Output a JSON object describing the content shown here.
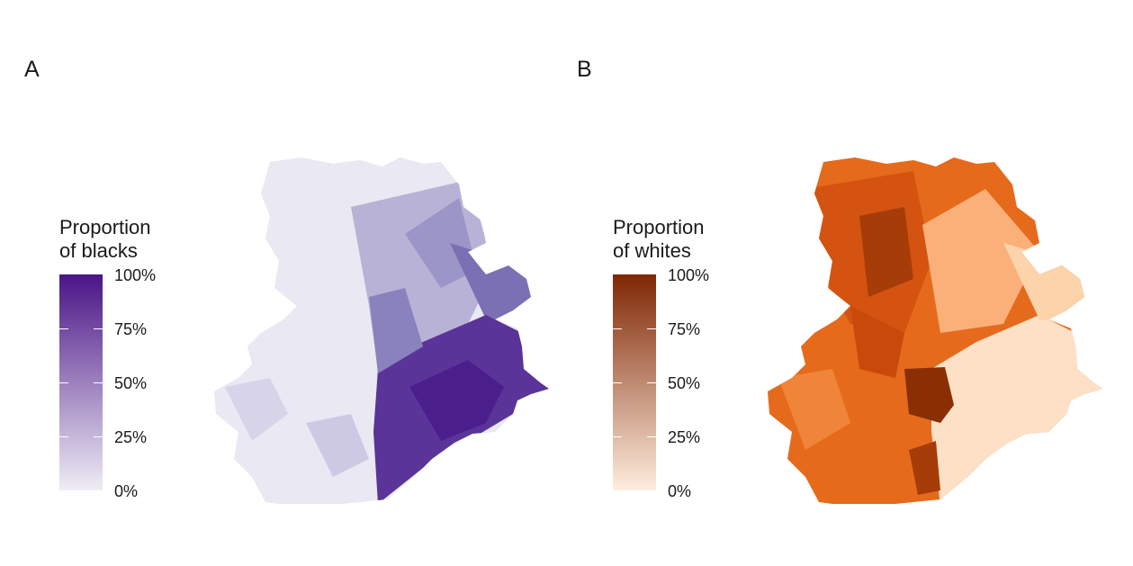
{
  "panels": [
    {
      "label": "A",
      "legend_title_line1": "Proportion",
      "legend_title_line2": "of blacks",
      "ticks": [
        "100%",
        "75%",
        "50%",
        "25%",
        "0%"
      ],
      "color_low": "#efedf5",
      "color_high": "#4a1486"
    },
    {
      "label": "B",
      "legend_title_line1": "Proportion",
      "legend_title_line2": "of whites",
      "ticks": [
        "100%",
        "75%",
        "50%",
        "25%",
        "0%"
      ],
      "color_low": "#feedde",
      "color_high": "#7f2704"
    }
  ]
}
